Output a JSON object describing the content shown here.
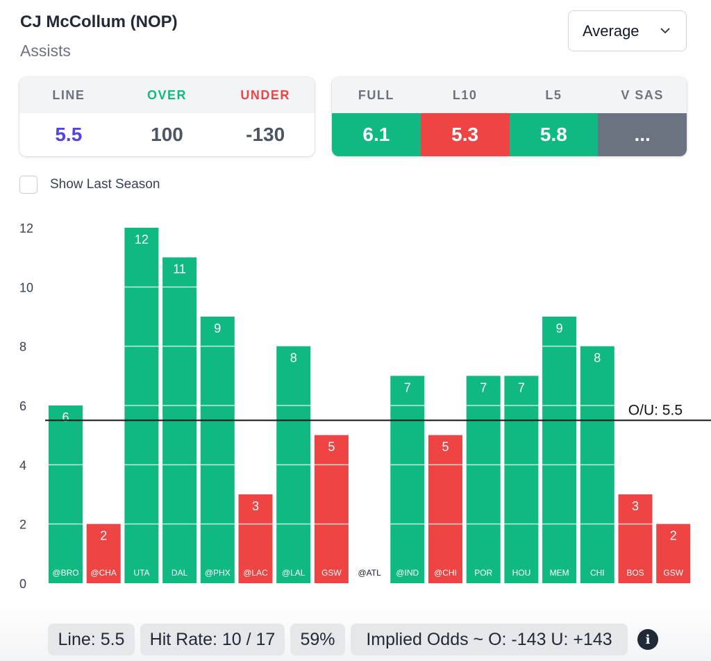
{
  "player": {
    "name": "CJ McCollum (NOP)",
    "stat": "Assists"
  },
  "select": {
    "value": "Average"
  },
  "odds_card": {
    "headers": [
      "LINE",
      "OVER",
      "UNDER"
    ],
    "values": [
      "5.5",
      "100",
      "-130"
    ],
    "header_colors": [
      "#6b7280",
      "#10b981",
      "#ef4444"
    ],
    "value_colors": [
      "#4f46e5",
      "#4b5563",
      "#4b5563"
    ]
  },
  "avg_card": {
    "headers": [
      "FULL",
      "L10",
      "L5",
      "V SAS"
    ],
    "values": [
      "6.1",
      "5.3",
      "5.8",
      "..."
    ],
    "colors": [
      "#10b981",
      "#ef4444",
      "#10b981",
      "#6b7280"
    ]
  },
  "show_last_season": {
    "label": "Show Last Season",
    "checked": false
  },
  "chart_data": {
    "type": "bar",
    "categories": [
      "@BRO",
      "@CHA",
      "UTA",
      "DAL",
      "@PHX",
      "@LAC",
      "@LAL",
      "GSW",
      "@ATL",
      "@IND",
      "@CHI",
      "POR",
      "HOU",
      "MEM",
      "CHI",
      "BOS",
      "GSW"
    ],
    "values": [
      6,
      2,
      12,
      11,
      9,
      3,
      8,
      5,
      null,
      7,
      5,
      7,
      7,
      9,
      8,
      3,
      2
    ],
    "ylim": [
      0,
      12
    ],
    "yticks": [
      0,
      2,
      4,
      6,
      8,
      10,
      12
    ],
    "line": {
      "value": 5.5,
      "label": "O/U: 5.5"
    },
    "colors": {
      "over": "#10b981",
      "under": "#ef4444"
    }
  },
  "footer": {
    "line": "Line: 5.5",
    "hit_rate": "Hit Rate: 10 / 17",
    "pct": "59%",
    "implied": "Implied Odds ~ O: -143 U: +143"
  }
}
